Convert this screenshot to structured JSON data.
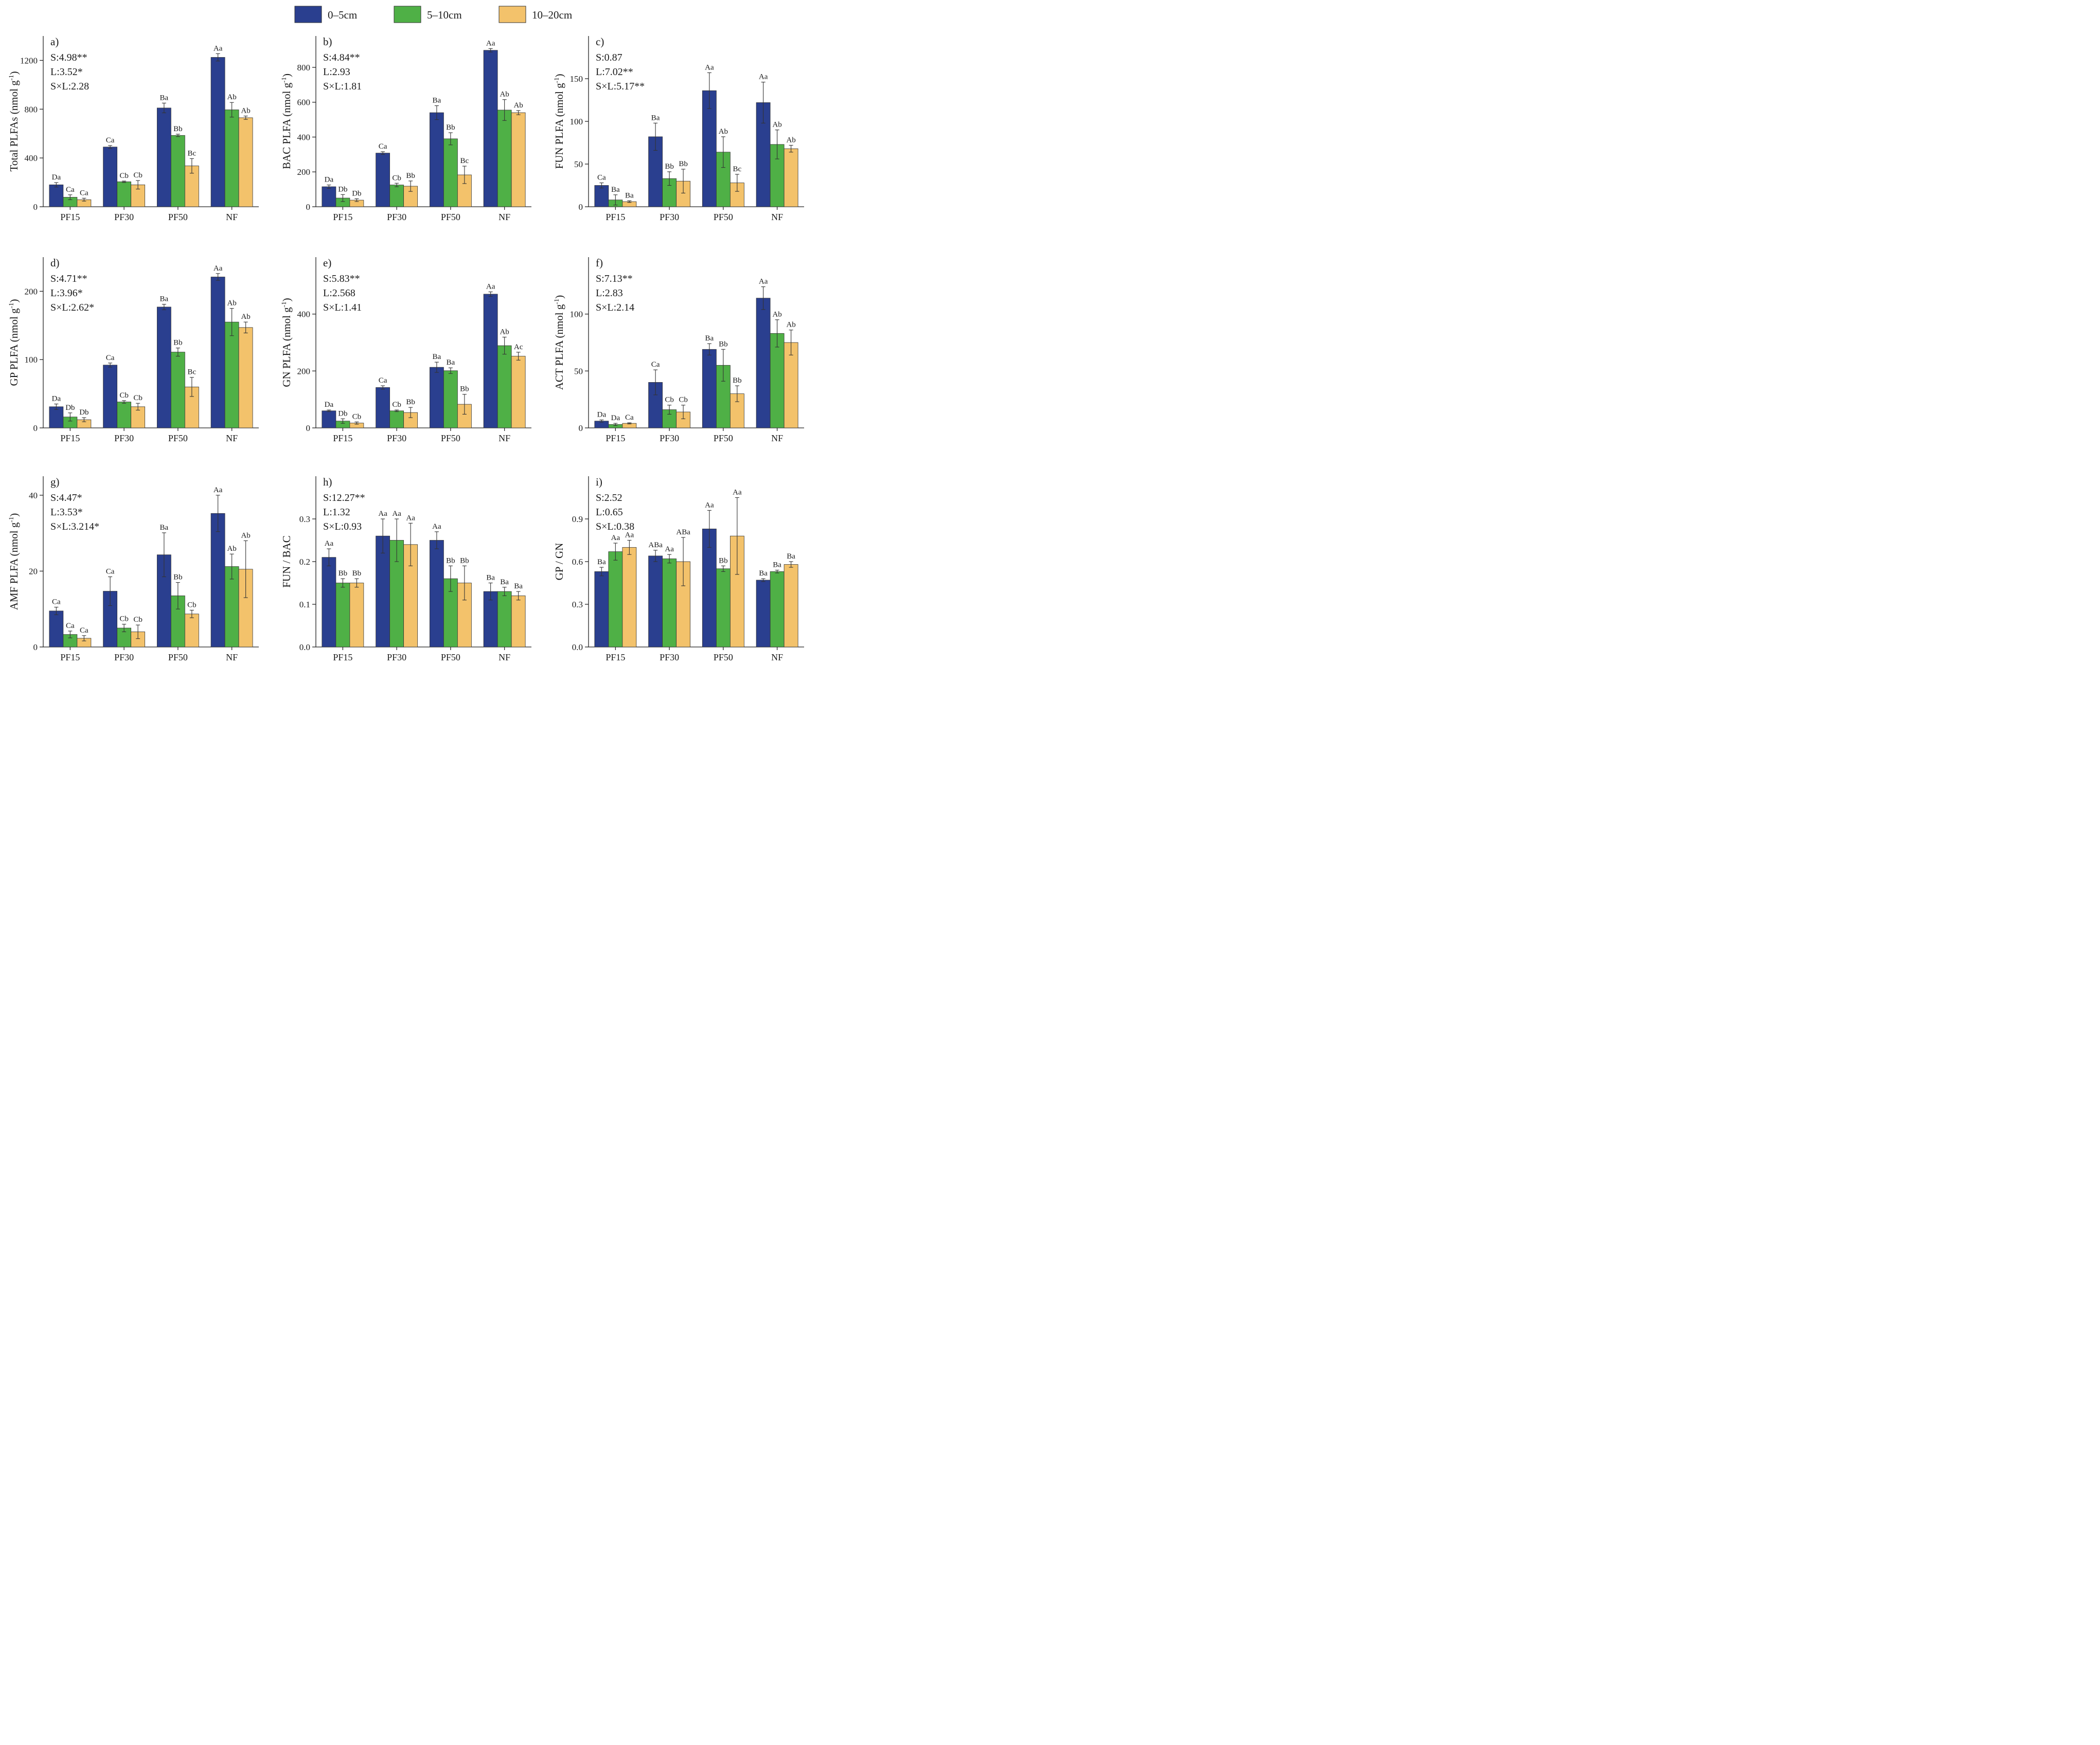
{
  "legend": [
    {
      "label": "0–5cm",
      "color": "#2a3f8f"
    },
    {
      "label": "5–10cm",
      "color": "#4fb046"
    },
    {
      "label": "10–20cm",
      "color": "#f3c26b"
    }
  ],
  "chart_data": [
    {
      "type": "bar",
      "panel": "a)",
      "ylabel": "Total PLFAs (nmol g",
      "ylabel_sup": "-1",
      "ylabel_end": ")",
      "categories": [
        "PF15",
        "PF30",
        "PF50",
        "NF"
      ],
      "ylim": [
        0,
        1400
      ],
      "yticks": [
        0,
        400,
        800,
        1200
      ],
      "ytick_labels": [
        "0",
        "400",
        "800",
        "1200"
      ],
      "stats": [
        "S:4.98**",
        "L:3.52*",
        "S×L:2.28"
      ],
      "series": [
        {
          "name": "0–5cm",
          "values": [
            180,
            490,
            810,
            1225
          ],
          "errors": [
            18,
            12,
            40,
            30
          ],
          "labels": [
            "Da",
            "Ca",
            "Ba",
            "Aa"
          ]
        },
        {
          "name": "5–10cm",
          "values": [
            78,
            205,
            585,
            795
          ],
          "errors": [
            20,
            6,
            10,
            60
          ],
          "labels": [
            "Ca",
            "Cb",
            "Bb",
            "Ab"
          ]
        },
        {
          "name": "10–20cm",
          "values": [
            58,
            180,
            335,
            730
          ],
          "errors": [
            12,
            35,
            60,
            14
          ],
          "labels": [
            "Ca",
            "Cb",
            "Bc",
            "Ab"
          ]
        }
      ]
    },
    {
      "type": "bar",
      "panel": "b)",
      "ylabel": "BAC PLFA (nmol g",
      "ylabel_sup": "-1",
      "ylabel_end": ")",
      "categories": [
        "PF15",
        "PF30",
        "PF50",
        "NF"
      ],
      "ylim": [
        0,
        980
      ],
      "yticks": [
        0,
        200,
        400,
        600,
        800
      ],
      "ytick_labels": [
        "0",
        "200",
        "400",
        "600",
        "800"
      ],
      "stats": [
        "S:4.84**",
        "L:2.93",
        "S×L:1.81"
      ],
      "series": [
        {
          "name": "0–5cm",
          "values": [
            115,
            308,
            540,
            898
          ],
          "errors": [
            10,
            8,
            40,
            10
          ],
          "labels": [
            "Da",
            "Ca",
            "Ba",
            "Aa"
          ]
        },
        {
          "name": "5–10cm",
          "values": [
            50,
            125,
            390,
            555
          ],
          "errors": [
            20,
            10,
            35,
            60
          ],
          "labels": [
            "Db",
            "Cb",
            "Bb",
            "Ab"
          ]
        },
        {
          "name": "10–20cm",
          "values": [
            38,
            118,
            183,
            540
          ],
          "errors": [
            8,
            30,
            50,
            12
          ],
          "labels": [
            "Db",
            "Bb",
            "Bc",
            "Ab"
          ]
        }
      ]
    },
    {
      "type": "bar",
      "panel": "c)",
      "ylabel": "FUN PLFA (nmol g",
      "ylabel_sup": "-1",
      "ylabel_end": ")",
      "categories": [
        "PF15",
        "PF30",
        "PF50",
        "NF"
      ],
      "ylim": [
        0,
        200
      ],
      "yticks": [
        0,
        50,
        100,
        150
      ],
      "ytick_labels": [
        "0",
        "50",
        "100",
        "150"
      ],
      "stats": [
        "S:0.87",
        "L:7.02**",
        "S×L:5.17**"
      ],
      "series": [
        {
          "name": "0–5cm",
          "values": [
            25,
            82,
            136,
            122
          ],
          "errors": [
            3,
            16,
            21,
            24
          ],
          "labels": [
            "Ca",
            "Ba",
            "Aa",
            "Aa"
          ]
        },
        {
          "name": "5–10cm",
          "values": [
            8,
            33,
            64,
            73
          ],
          "errors": [
            6,
            8,
            18,
            17
          ],
          "labels": [
            "Ba",
            "Bb",
            "Ab",
            "Ab"
          ]
        },
        {
          "name": "10–20cm",
          "values": [
            6,
            30,
            28,
            68
          ],
          "errors": [
            1,
            14,
            10,
            4
          ],
          "labels": [
            "Ba",
            "Bb",
            "Bc",
            "Ab"
          ]
        }
      ]
    },
    {
      "type": "bar",
      "panel": "d)",
      "ylabel": "GP PLFA (nmol g",
      "ylabel_sup": "-1",
      "ylabel_end": ")",
      "categories": [
        "PF15",
        "PF30",
        "PF50",
        "NF"
      ],
      "ylim": [
        0,
        250
      ],
      "yticks": [
        0,
        100,
        200
      ],
      "ytick_labels": [
        "0",
        "100",
        "200"
      ],
      "stats": [
        "S:4.71**",
        "L:3.96*",
        "S×L:2.62*"
      ],
      "series": [
        {
          "name": "0–5cm",
          "values": [
            31,
            92,
            177,
            221
          ],
          "errors": [
            4,
            3,
            4,
            5
          ],
          "labels": [
            "Da",
            "Ca",
            "Ba",
            "Aa"
          ]
        },
        {
          "name": "5–10cm",
          "values": [
            16,
            38,
            111,
            155
          ],
          "errors": [
            6,
            2,
            6,
            20
          ],
          "labels": [
            "Db",
            "Cb",
            "Bb",
            "Ab"
          ]
        },
        {
          "name": "10–20cm",
          "values": [
            12,
            31,
            60,
            147
          ],
          "errors": [
            3,
            5,
            14,
            8
          ],
          "labels": [
            "Db",
            "Cb",
            "Bc",
            "Ab"
          ]
        }
      ]
    },
    {
      "type": "bar",
      "panel": "e)",
      "ylabel": "GN PLFA (nmol g",
      "ylabel_sup": "-1",
      "ylabel_end": ")",
      "categories": [
        "PF15",
        "PF30",
        "PF50",
        "NF"
      ],
      "ylim": [
        0,
        600
      ],
      "yticks": [
        0,
        200,
        400
      ],
      "ytick_labels": [
        "0",
        "200",
        "400"
      ],
      "stats": [
        "S:5.83**",
        "L:2.568",
        "S×L:1.41"
      ],
      "series": [
        {
          "name": "0–5cm",
          "values": [
            60,
            142,
            213,
            470
          ],
          "errors": [
            3,
            6,
            18,
            8
          ],
          "labels": [
            "Da",
            "Ca",
            "Ba",
            "Aa"
          ]
        },
        {
          "name": "5–10cm",
          "values": [
            24,
            60,
            201,
            289
          ],
          "errors": [
            8,
            3,
            10,
            30
          ],
          "labels": [
            "Db",
            "Cb",
            "Ba",
            "Ab"
          ]
        },
        {
          "name": "10–20cm",
          "values": [
            17,
            54,
            83,
            252
          ],
          "errors": [
            4,
            18,
            35,
            14
          ],
          "labels": [
            "Cb",
            "Bb",
            "Bb",
            "Ac"
          ]
        }
      ]
    },
    {
      "type": "bar",
      "panel": "f)",
      "ylabel": "ACT PLFA (nmol g",
      "ylabel_sup": "-1",
      "ylabel_end": ")",
      "categories": [
        "PF15",
        "PF30",
        "PF50",
        "NF"
      ],
      "ylim": [
        0,
        150
      ],
      "yticks": [
        0,
        50,
        100
      ],
      "ytick_labels": [
        "0",
        "50",
        "100"
      ],
      "stats": [
        "S:7.13**",
        "L:2.83",
        "S×L:2.14"
      ],
      "series": [
        {
          "name": "0–5cm",
          "values": [
            6,
            40,
            69,
            114
          ],
          "errors": [
            1,
            11,
            5,
            10
          ],
          "labels": [
            "Da",
            "Ca",
            "Ba",
            "Aa"
          ]
        },
        {
          "name": "5–10cm",
          "values": [
            3,
            16,
            55,
            83
          ],
          "errors": [
            1,
            4,
            14,
            12
          ],
          "labels": [
            "Da",
            "Cb",
            "Bb",
            "Ab"
          ]
        },
        {
          "name": "10–20cm",
          "values": [
            4,
            14,
            30,
            75
          ],
          "errors": [
            0.5,
            6,
            7,
            11
          ],
          "labels": [
            "Ca",
            "Cb",
            "Bb",
            "Ab"
          ]
        }
      ]
    },
    {
      "type": "bar",
      "panel": "g)",
      "ylabel": "AMF PLFA (nmol g",
      "ylabel_sup": "-1",
      "ylabel_end": ")",
      "categories": [
        "PF15",
        "PF30",
        "PF50",
        "NF"
      ],
      "ylim": [
        0,
        45
      ],
      "yticks": [
        0,
        20,
        40
      ],
      "ytick_labels": [
        "0",
        "20",
        "40"
      ],
      "stats": [
        "S:4.47*",
        "L:3.53*",
        "S×L:3.214*"
      ],
      "series": [
        {
          "name": "0–5cm",
          "values": [
            9.5,
            14.7,
            24.3,
            35.2
          ],
          "errors": [
            1,
            3.8,
            5.8,
            4.8
          ],
          "labels": [
            "Ca",
            "Ca",
            "Ba",
            "Aa"
          ]
        },
        {
          "name": "5–10cm",
          "values": [
            3.3,
            5.0,
            13.5,
            21.2
          ],
          "errors": [
            0.9,
            1.0,
            3.5,
            3.3
          ],
          "labels": [
            "Ca",
            "Cb",
            "Bb",
            "Ab"
          ]
        },
        {
          "name": "10–20cm",
          "values": [
            2.3,
            4.0,
            8.7,
            20.5
          ],
          "errors": [
            0.7,
            1.8,
            1.0,
            7.5
          ],
          "labels": [
            "Ca",
            "Cb",
            "Cb",
            "Ab"
          ]
        }
      ]
    },
    {
      "type": "bar",
      "panel": "h)",
      "ylabel": "FUN / BAC",
      "ylabel_sup": "",
      "ylabel_end": "",
      "categories": [
        "PF15",
        "PF30",
        "PF50",
        "NF"
      ],
      "ylim": [
        0,
        0.4
      ],
      "yticks": [
        0,
        0.1,
        0.2,
        0.3
      ],
      "ytick_labels": [
        "0.0",
        "0.1",
        "0.2",
        "0.3"
      ],
      "stats": [
        "S:12.27**",
        "L:1.32",
        "S×L:0.93"
      ],
      "series": [
        {
          "name": "0–5cm",
          "values": [
            0.21,
            0.26,
            0.25,
            0.13
          ],
          "errors": [
            0.02,
            0.04,
            0.02,
            0.02
          ],
          "labels": [
            "Aa",
            "Aa",
            "Aa",
            "Ba"
          ]
        },
        {
          "name": "5–10cm",
          "values": [
            0.15,
            0.25,
            0.16,
            0.13
          ],
          "errors": [
            0.01,
            0.05,
            0.03,
            0.01
          ],
          "labels": [
            "Bb",
            "Aa",
            "Bb",
            "Ba"
          ]
        },
        {
          "name": "10–20cm",
          "values": [
            0.15,
            0.24,
            0.15,
            0.12
          ],
          "errors": [
            0.01,
            0.05,
            0.04,
            0.01
          ],
          "labels": [
            "Bb",
            "Aa",
            "Bb",
            "Ba"
          ]
        }
      ]
    },
    {
      "type": "bar",
      "panel": "i)",
      "ylabel": "GP / GN",
      "ylabel_sup": "",
      "ylabel_end": "",
      "categories": [
        "PF15",
        "PF30",
        "PF50",
        "NF"
      ],
      "ylim": [
        0,
        1.2
      ],
      "yticks": [
        0,
        0.3,
        0.6,
        0.9
      ],
      "ytick_labels": [
        "0.0",
        "0.3",
        "0.6",
        "0.9"
      ],
      "stats": [
        "S:2.52",
        "L:0.65",
        "S×L:0.38"
      ],
      "series": [
        {
          "name": "0–5cm",
          "values": [
            0.53,
            0.64,
            0.83,
            0.47
          ],
          "errors": [
            0.03,
            0.04,
            0.13,
            0.01
          ],
          "labels": [
            "Ba",
            "ABa",
            "Aa",
            "Ba"
          ]
        },
        {
          "name": "5–10cm",
          "values": [
            0.67,
            0.62,
            0.55,
            0.53
          ],
          "errors": [
            0.06,
            0.03,
            0.02,
            0.01
          ],
          "labels": [
            "Aa",
            "Aa",
            "Bb",
            "Ba"
          ]
        },
        {
          "name": "10–20cm",
          "values": [
            0.7,
            0.6,
            0.78,
            0.58
          ],
          "errors": [
            0.05,
            0.17,
            0.27,
            0.02
          ],
          "labels": [
            "Aa",
            "ABa",
            "Aa",
            "Ba"
          ]
        }
      ]
    }
  ]
}
